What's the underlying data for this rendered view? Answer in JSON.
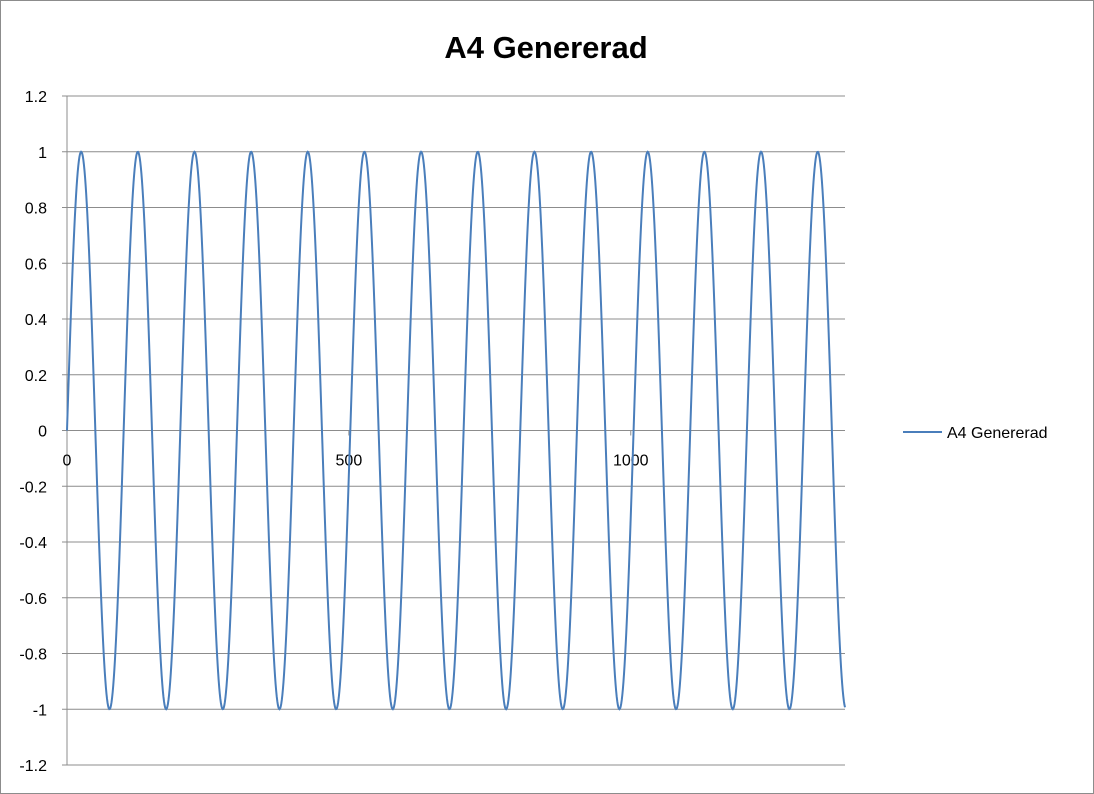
{
  "chart_data": {
    "type": "line",
    "title": "A4 Genererad",
    "xlabel": "",
    "ylabel": "",
    "xlim": [
      0,
      1380
    ],
    "ylim": [
      -1.2,
      1.2
    ],
    "x_ticks": [
      0,
      500,
      1000
    ],
    "x_tick_labels": [
      "0",
      "500",
      "1000"
    ],
    "y_ticks": [
      1.2,
      1,
      0.8,
      0.6,
      0.4,
      0.2,
      0,
      -0.2,
      -0.4,
      -0.6,
      -0.8,
      -1,
      -1.2
    ],
    "y_tick_labels": [
      "1.2",
      "1",
      "0.8",
      "0.6",
      "0.4",
      "0.2",
      "0",
      "-0.2",
      "-0.4",
      "-0.6",
      "-0.8",
      "-1",
      "-1.2"
    ],
    "grid": "horizontal",
    "x_axis_position": "y=0",
    "legend": "right",
    "series": [
      {
        "name": "A4 Genererad",
        "color": "#4a7ebb",
        "function": "sin",
        "amplitude": 1,
        "period": 100.5,
        "x_start": 0,
        "x_end": 1380,
        "peaks_x": [
          25,
          126,
          226,
          327,
          427,
          528,
          628,
          729,
          829,
          930,
          1030,
          1131,
          1231,
          1332
        ],
        "troughs_x": [
          75,
          176,
          276,
          377,
          477,
          578,
          678,
          779,
          879,
          980,
          1080,
          1181,
          1281
        ]
      }
    ]
  }
}
